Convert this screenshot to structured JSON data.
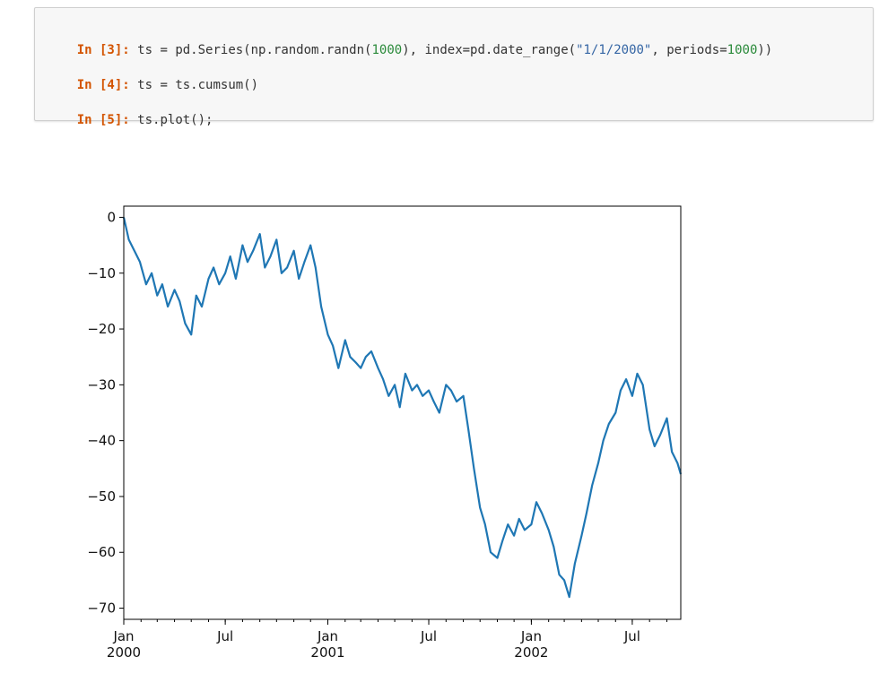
{
  "cells": [
    {
      "prompt": "In [3]:",
      "parts": [
        {
          "t": "ts = pd.Series(np.random.randn(",
          "c": "code"
        },
        {
          "t": "1000",
          "c": "num"
        },
        {
          "t": "), index=pd.date_range(",
          "c": "code"
        },
        {
          "t": "\"1/1/2000\"",
          "c": "str"
        },
        {
          "t": ", periods=",
          "c": "code"
        },
        {
          "t": "1000",
          "c": "num"
        },
        {
          "t": "))",
          "c": "code"
        }
      ]
    },
    {
      "prompt": "In [4]:",
      "parts": [
        {
          "t": "ts = ts.cumsum()",
          "c": "code"
        }
      ]
    },
    {
      "prompt": "In [5]:",
      "parts": [
        {
          "t": "ts.plot();",
          "c": "code"
        }
      ]
    }
  ],
  "colors": {
    "line": "#1f77b4",
    "prompt": "#d35400",
    "number": "#2a8a3a",
    "string": "#3465a4"
  },
  "chart_data": {
    "type": "line",
    "title": "",
    "xlabel": "",
    "ylabel": "",
    "ylim": [
      -70,
      0
    ],
    "yticks": [
      0,
      -10,
      -20,
      -30,
      -40,
      -50,
      -60,
      -70
    ],
    "xticks": [
      {
        "date": "2000-01-01",
        "label": "Jan",
        "sublabel": "2000"
      },
      {
        "date": "2000-07-01",
        "label": "Jul",
        "sublabel": ""
      },
      {
        "date": "2001-01-01",
        "label": "Jan",
        "sublabel": "2001"
      },
      {
        "date": "2001-07-01",
        "label": "Jul",
        "sublabel": ""
      },
      {
        "date": "2002-01-01",
        "label": "Jan",
        "sublabel": "2002"
      },
      {
        "date": "2002-07-01",
        "label": "Jul",
        "sublabel": ""
      }
    ],
    "xlim": [
      "2000-01-01",
      "2002-09-26"
    ],
    "grid": false,
    "legend": "none",
    "series": [
      {
        "x": [
          "2000-01-01",
          "2000-01-10",
          "2000-01-20",
          "2000-01-30",
          "2000-02-10",
          "2000-02-20",
          "2000-03-01",
          "2000-03-10",
          "2000-03-20",
          "2000-04-01",
          "2000-04-10",
          "2000-04-20",
          "2000-05-01",
          "2000-05-10",
          "2000-05-20",
          "2000-06-01",
          "2000-06-10",
          "2000-06-20",
          "2000-07-01",
          "2000-07-10",
          "2000-07-20",
          "2000-08-01",
          "2000-08-10",
          "2000-08-20",
          "2000-09-01",
          "2000-09-10",
          "2000-09-20",
          "2000-10-01",
          "2000-10-10",
          "2000-10-20",
          "2000-11-01",
          "2000-11-10",
          "2000-11-20",
          "2000-12-01",
          "2000-12-10",
          "2000-12-20",
          "2001-01-01",
          "2001-01-10",
          "2001-01-20",
          "2001-02-01",
          "2001-02-10",
          "2001-02-20",
          "2001-03-01",
          "2001-03-10",
          "2001-03-20",
          "2001-04-01",
          "2001-04-10",
          "2001-04-20",
          "2001-05-01",
          "2001-05-10",
          "2001-05-20",
          "2001-06-01",
          "2001-06-10",
          "2001-06-20",
          "2001-07-01",
          "2001-07-10",
          "2001-07-20",
          "2001-08-01",
          "2001-08-10",
          "2001-08-20",
          "2001-09-01",
          "2001-09-10",
          "2001-09-20",
          "2001-10-01",
          "2001-10-10",
          "2001-10-20",
          "2001-11-01",
          "2001-11-10",
          "2001-11-20",
          "2001-12-01",
          "2001-12-10",
          "2001-12-20",
          "2002-01-01",
          "2002-01-10",
          "2002-01-20",
          "2002-02-01",
          "2002-02-10",
          "2002-02-20",
          "2002-03-01",
          "2002-03-10",
          "2002-03-20",
          "2002-04-01",
          "2002-04-10",
          "2002-04-20",
          "2002-05-01",
          "2002-05-10",
          "2002-05-20",
          "2002-06-01",
          "2002-06-10",
          "2002-06-20",
          "2002-07-01",
          "2002-07-10",
          "2002-07-20",
          "2002-08-01",
          "2002-08-10",
          "2002-08-20",
          "2002-09-01",
          "2002-09-10",
          "2002-09-20",
          "2002-09-26"
        ],
        "values": [
          0,
          -4,
          -6,
          -8,
          -12,
          -10,
          -14,
          -12,
          -16,
          -13,
          -15,
          -19,
          -21,
          -14,
          -16,
          -11,
          -9,
          -12,
          -10,
          -7,
          -11,
          -5,
          -8,
          -6,
          -3,
          -9,
          -7,
          -4,
          -10,
          -9,
          -6,
          -11,
          -8,
          -5,
          -9,
          -16,
          -21,
          -23,
          -27,
          -22,
          -25,
          -26,
          -27,
          -25,
          -24,
          -27,
          -29,
          -32,
          -30,
          -34,
          -28,
          -31,
          -30,
          -32,
          -31,
          -33,
          -35,
          -30,
          -31,
          -33,
          -32,
          -38,
          -45,
          -52,
          -55,
          -60,
          -61,
          -58,
          -55,
          -57,
          -54,
          -56,
          -55,
          -51,
          -53,
          -56,
          -59,
          -64,
          -65,
          -68,
          -62,
          -57,
          -53,
          -48,
          -44,
          -40,
          -37,
          -35,
          -31,
          -29,
          -32,
          -28,
          -30,
          -38,
          -41,
          -39,
          -36,
          -42,
          -44,
          -46
        ]
      }
    ]
  }
}
